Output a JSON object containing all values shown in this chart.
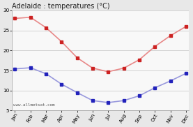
{
  "title": "Adelaide : temperatures (°C)",
  "months": [
    "Jan",
    "Feb",
    "Mar",
    "Apr",
    "May",
    "Jun",
    "Jul",
    "Aug",
    "Sep",
    "Oct",
    "Nov",
    "Dec"
  ],
  "max_temps": [
    28.0,
    28.3,
    25.7,
    22.2,
    18.2,
    15.6,
    14.7,
    15.6,
    17.7,
    21.0,
    23.7,
    26.0
  ],
  "min_temps": [
    15.4,
    15.7,
    14.2,
    11.6,
    9.5,
    7.5,
    7.0,
    7.5,
    8.7,
    10.7,
    12.4,
    14.3
  ],
  "max_color_line": "#e88888",
  "max_color_marker": "#cc2222",
  "min_color_line": "#9999dd",
  "min_color_marker": "#2222bb",
  "ylim_min": 5,
  "ylim_max": 30,
  "yticks": [
    5,
    10,
    15,
    20,
    25,
    30
  ],
  "watermark": "www.allmetsat.com",
  "bg_color": "#e8e8e8",
  "plot_bg_color": "#f8f8f8",
  "grid_color": "#cccccc",
  "title_fontsize": 7.0,
  "tick_fontsize": 5.2,
  "watermark_fontsize": 4.2
}
